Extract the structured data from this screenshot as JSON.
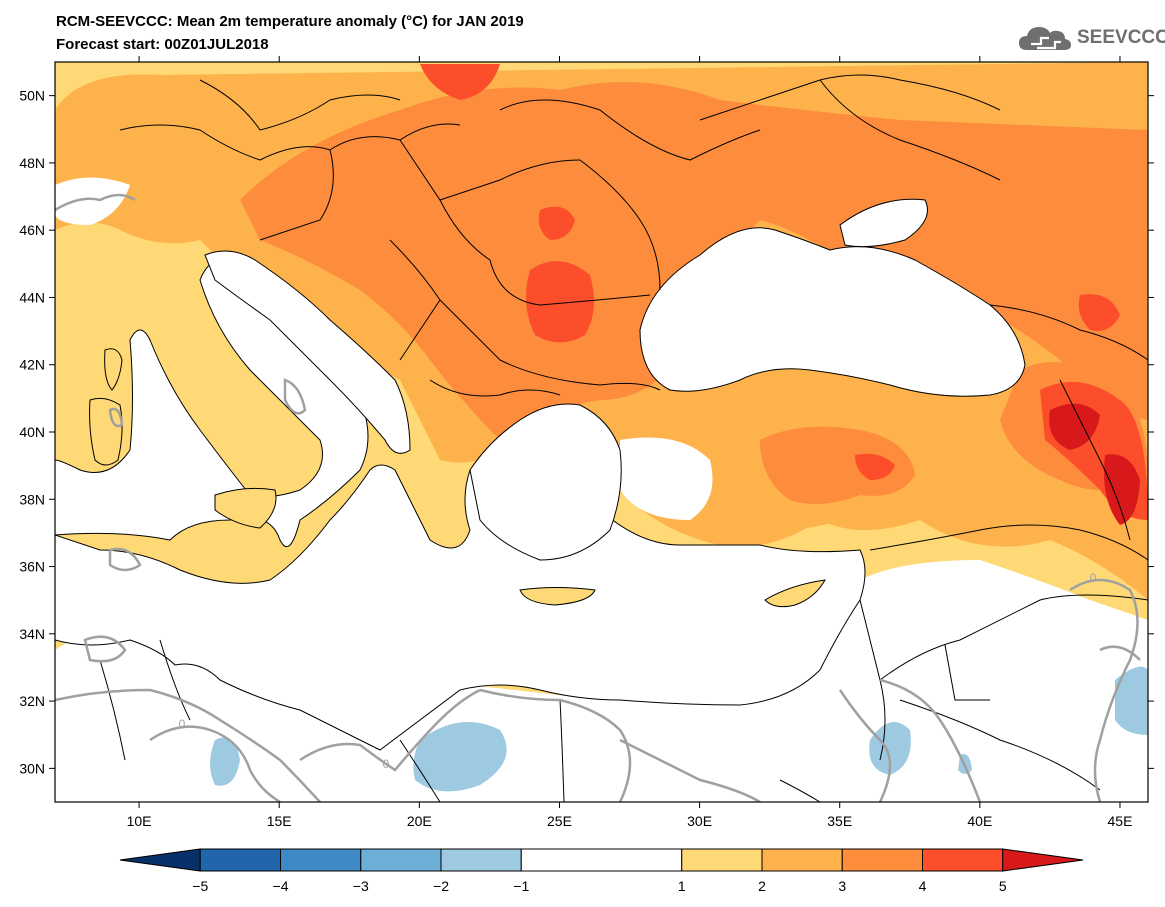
{
  "header": {
    "title": "RCM-SEEVCCC: Mean 2m temperature anomaly (°C) for JAN 2019",
    "subtitle": "Forecast start: 00Z01JUL2018"
  },
  "logo": {
    "text": "SEEVCCC",
    "icon": "cloud-icon"
  },
  "map": {
    "lon_range": [
      7,
      46
    ],
    "lat_range": [
      29,
      51
    ],
    "lat_ticks": [
      {
        "value": 30,
        "label": "30N"
      },
      {
        "value": 32,
        "label": "32N"
      },
      {
        "value": 34,
        "label": "34N"
      },
      {
        "value": 36,
        "label": "36N"
      },
      {
        "value": 38,
        "label": "38N"
      },
      {
        "value": 40,
        "label": "40N"
      },
      {
        "value": 42,
        "label": "42N"
      },
      {
        "value": 44,
        "label": "44N"
      },
      {
        "value": 46,
        "label": "46N"
      },
      {
        "value": 48,
        "label": "48N"
      },
      {
        "value": 50,
        "label": "50N"
      }
    ],
    "lon_ticks": [
      {
        "value": 10,
        "label": "10E"
      },
      {
        "value": 15,
        "label": "15E"
      },
      {
        "value": 20,
        "label": "20E"
      },
      {
        "value": 25,
        "label": "25E"
      },
      {
        "value": 30,
        "label": "30E"
      },
      {
        "value": 35,
        "label": "35E"
      },
      {
        "value": 40,
        "label": "40E"
      },
      {
        "value": 45,
        "label": "45E"
      }
    ],
    "contour_label": "0",
    "colors": {
      "sea": "#ffffff",
      "border": "#000000",
      "zero_contour": "#a0a0a0"
    }
  },
  "colorbar": {
    "bins": [
      {
        "from": -6,
        "to": -5,
        "color": "#08306b"
      },
      {
        "from": -5,
        "to": -4,
        "color": "#2166ac"
      },
      {
        "from": -4,
        "to": -3,
        "color": "#3f8ac6"
      },
      {
        "from": -3,
        "to": -2,
        "color": "#6baed6"
      },
      {
        "from": -2,
        "to": -1,
        "color": "#9ecae1"
      },
      {
        "from": -1,
        "to": 1,
        "color": "#ffffff"
      },
      {
        "from": 1,
        "to": 2,
        "color": "#fed976"
      },
      {
        "from": 2,
        "to": 3,
        "color": "#feb24c"
      },
      {
        "from": 3,
        "to": 4,
        "color": "#fd8d3c"
      },
      {
        "from": 4,
        "to": 5,
        "color": "#fc4e2a"
      },
      {
        "from": 5,
        "to": 6,
        "color": "#d7191c"
      }
    ],
    "labels": [
      "−5",
      "−4",
      "−3",
      "−2",
      "−1",
      "1",
      "2",
      "3",
      "4",
      "5"
    ]
  }
}
